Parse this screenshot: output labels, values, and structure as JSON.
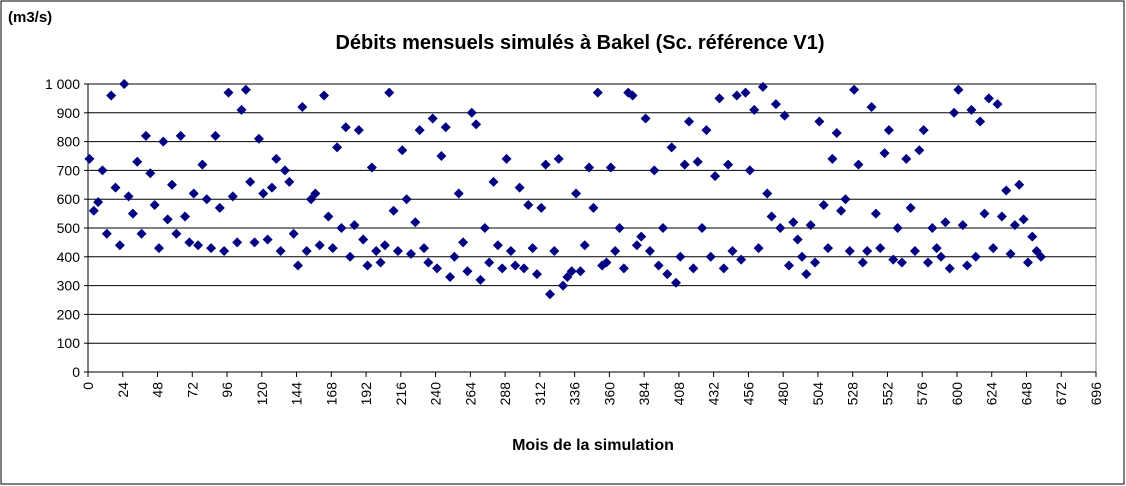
{
  "chart_data": {
    "type": "scatter",
    "title": "Débits mensuels simulés à Bakel (Sc. référence V1)",
    "y_unit": "(m3/s)",
    "x_label": "Mois de la simulation",
    "color": "#000080",
    "grid": true,
    "xlim": [
      0,
      696
    ],
    "ylim": [
      0,
      1000
    ],
    "xticks": [
      0,
      24,
      48,
      72,
      96,
      120,
      144,
      168,
      192,
      216,
      240,
      264,
      288,
      312,
      336,
      360,
      384,
      408,
      432,
      456,
      480,
      504,
      528,
      552,
      576,
      600,
      624,
      648,
      672,
      696
    ],
    "yticks": [
      0,
      100,
      200,
      300,
      400,
      500,
      600,
      700,
      800,
      900,
      {
        "value": 1000,
        "label": "1 000"
      }
    ],
    "x": [
      1,
      4,
      7,
      10,
      13,
      16,
      19,
      22,
      25,
      28,
      31,
      34,
      37,
      40,
      43,
      46,
      49,
      52,
      55,
      58,
      61,
      64,
      67,
      70,
      73,
      76,
      79,
      82,
      85,
      88,
      91,
      94,
      97,
      100,
      103,
      106,
      109,
      112,
      115,
      118,
      121,
      124,
      127,
      130,
      133,
      136,
      139,
      142,
      145,
      148,
      151,
      154,
      157,
      160,
      163,
      166,
      169,
      172,
      175,
      178,
      181,
      184,
      187,
      190,
      193,
      196,
      199,
      202,
      205,
      208,
      211,
      214,
      217,
      220,
      223,
      226,
      229,
      232,
      235,
      238,
      241,
      244,
      247,
      250,
      253,
      256,
      259,
      262,
      265,
      268,
      271,
      274,
      277,
      280,
      283,
      286,
      289,
      292,
      295,
      298,
      301,
      304,
      307,
      310,
      313,
      316,
      319,
      322,
      325,
      328,
      331,
      334,
      337,
      340,
      343,
      346,
      349,
      352,
      355,
      358,
      361,
      364,
      367,
      370,
      373,
      376,
      379,
      382,
      385,
      388,
      391,
      394,
      397,
      400,
      403,
      406,
      409,
      412,
      415,
      418,
      421,
      424,
      427,
      430,
      433,
      436,
      439,
      442,
      445,
      448,
      451,
      454,
      457,
      460,
      463,
      466,
      469,
      472,
      475,
      478,
      481,
      484,
      487,
      490,
      493,
      496,
      499,
      502,
      505,
      508,
      511,
      514,
      517,
      520,
      523,
      526,
      529,
      532,
      535,
      538,
      541,
      544,
      547,
      550,
      553,
      556,
      559,
      562,
      565,
      568,
      571,
      574,
      577,
      580,
      583,
      586,
      589,
      592,
      595,
      598,
      601,
      604,
      607,
      610,
      613,
      616,
      619,
      622,
      625,
      628,
      631,
      634,
      637,
      640,
      643,
      646,
      649,
      652,
      655,
      658
    ],
    "values": [
      740,
      560,
      590,
      700,
      480,
      960,
      640,
      440,
      1000,
      610,
      550,
      730,
      480,
      820,
      690,
      580,
      430,
      800,
      530,
      650,
      480,
      820,
      540,
      450,
      620,
      440,
      720,
      600,
      430,
      820,
      570,
      420,
      970,
      610,
      450,
      910,
      980,
      660,
      450,
      810,
      620,
      460,
      640,
      740,
      420,
      700,
      660,
      480,
      370,
      920,
      420,
      600,
      620,
      440,
      960,
      540,
      430,
      780,
      500,
      850,
      400,
      510,
      840,
      460,
      370,
      710,
      420,
      380,
      440,
      970,
      560,
      420,
      770,
      600,
      410,
      520,
      840,
      430,
      380,
      880,
      360,
      750,
      850,
      330,
      400,
      620,
      450,
      350,
      900,
      860,
      320,
      500,
      380,
      660,
      440,
      360,
      740,
      420,
      370,
      640,
      360,
      580,
      430,
      340,
      570,
      720,
      270,
      420,
      740,
      300,
      330,
      350,
      620,
      350,
      440,
      710,
      570,
      970,
      370,
      380,
      710,
      420,
      500,
      360,
      970,
      960,
      440,
      470,
      880,
      420,
      700,
      370,
      500,
      340,
      780,
      310,
      400,
      720,
      870,
      360,
      730,
      500,
      840,
      400,
      680,
      950,
      360,
      720,
      420,
      960,
      390,
      970,
      700,
      910,
      430,
      990,
      620,
      540,
      930,
      500,
      890,
      370,
      520,
      460,
      400,
      340,
      510,
      380,
      870,
      580,
      430,
      740,
      830,
      560,
      600,
      420,
      980,
      720,
      380,
      420,
      920,
      550,
      430,
      760,
      840,
      390,
      500,
      380,
      740,
      570,
      420,
      770,
      840,
      380,
      500,
      430,
      400,
      520,
      360,
      900,
      980,
      510,
      370,
      910,
      400,
      870,
      550,
      950,
      430,
      930,
      540,
      630,
      410,
      510,
      650,
      530,
      380,
      470,
      420,
      400
    ]
  }
}
